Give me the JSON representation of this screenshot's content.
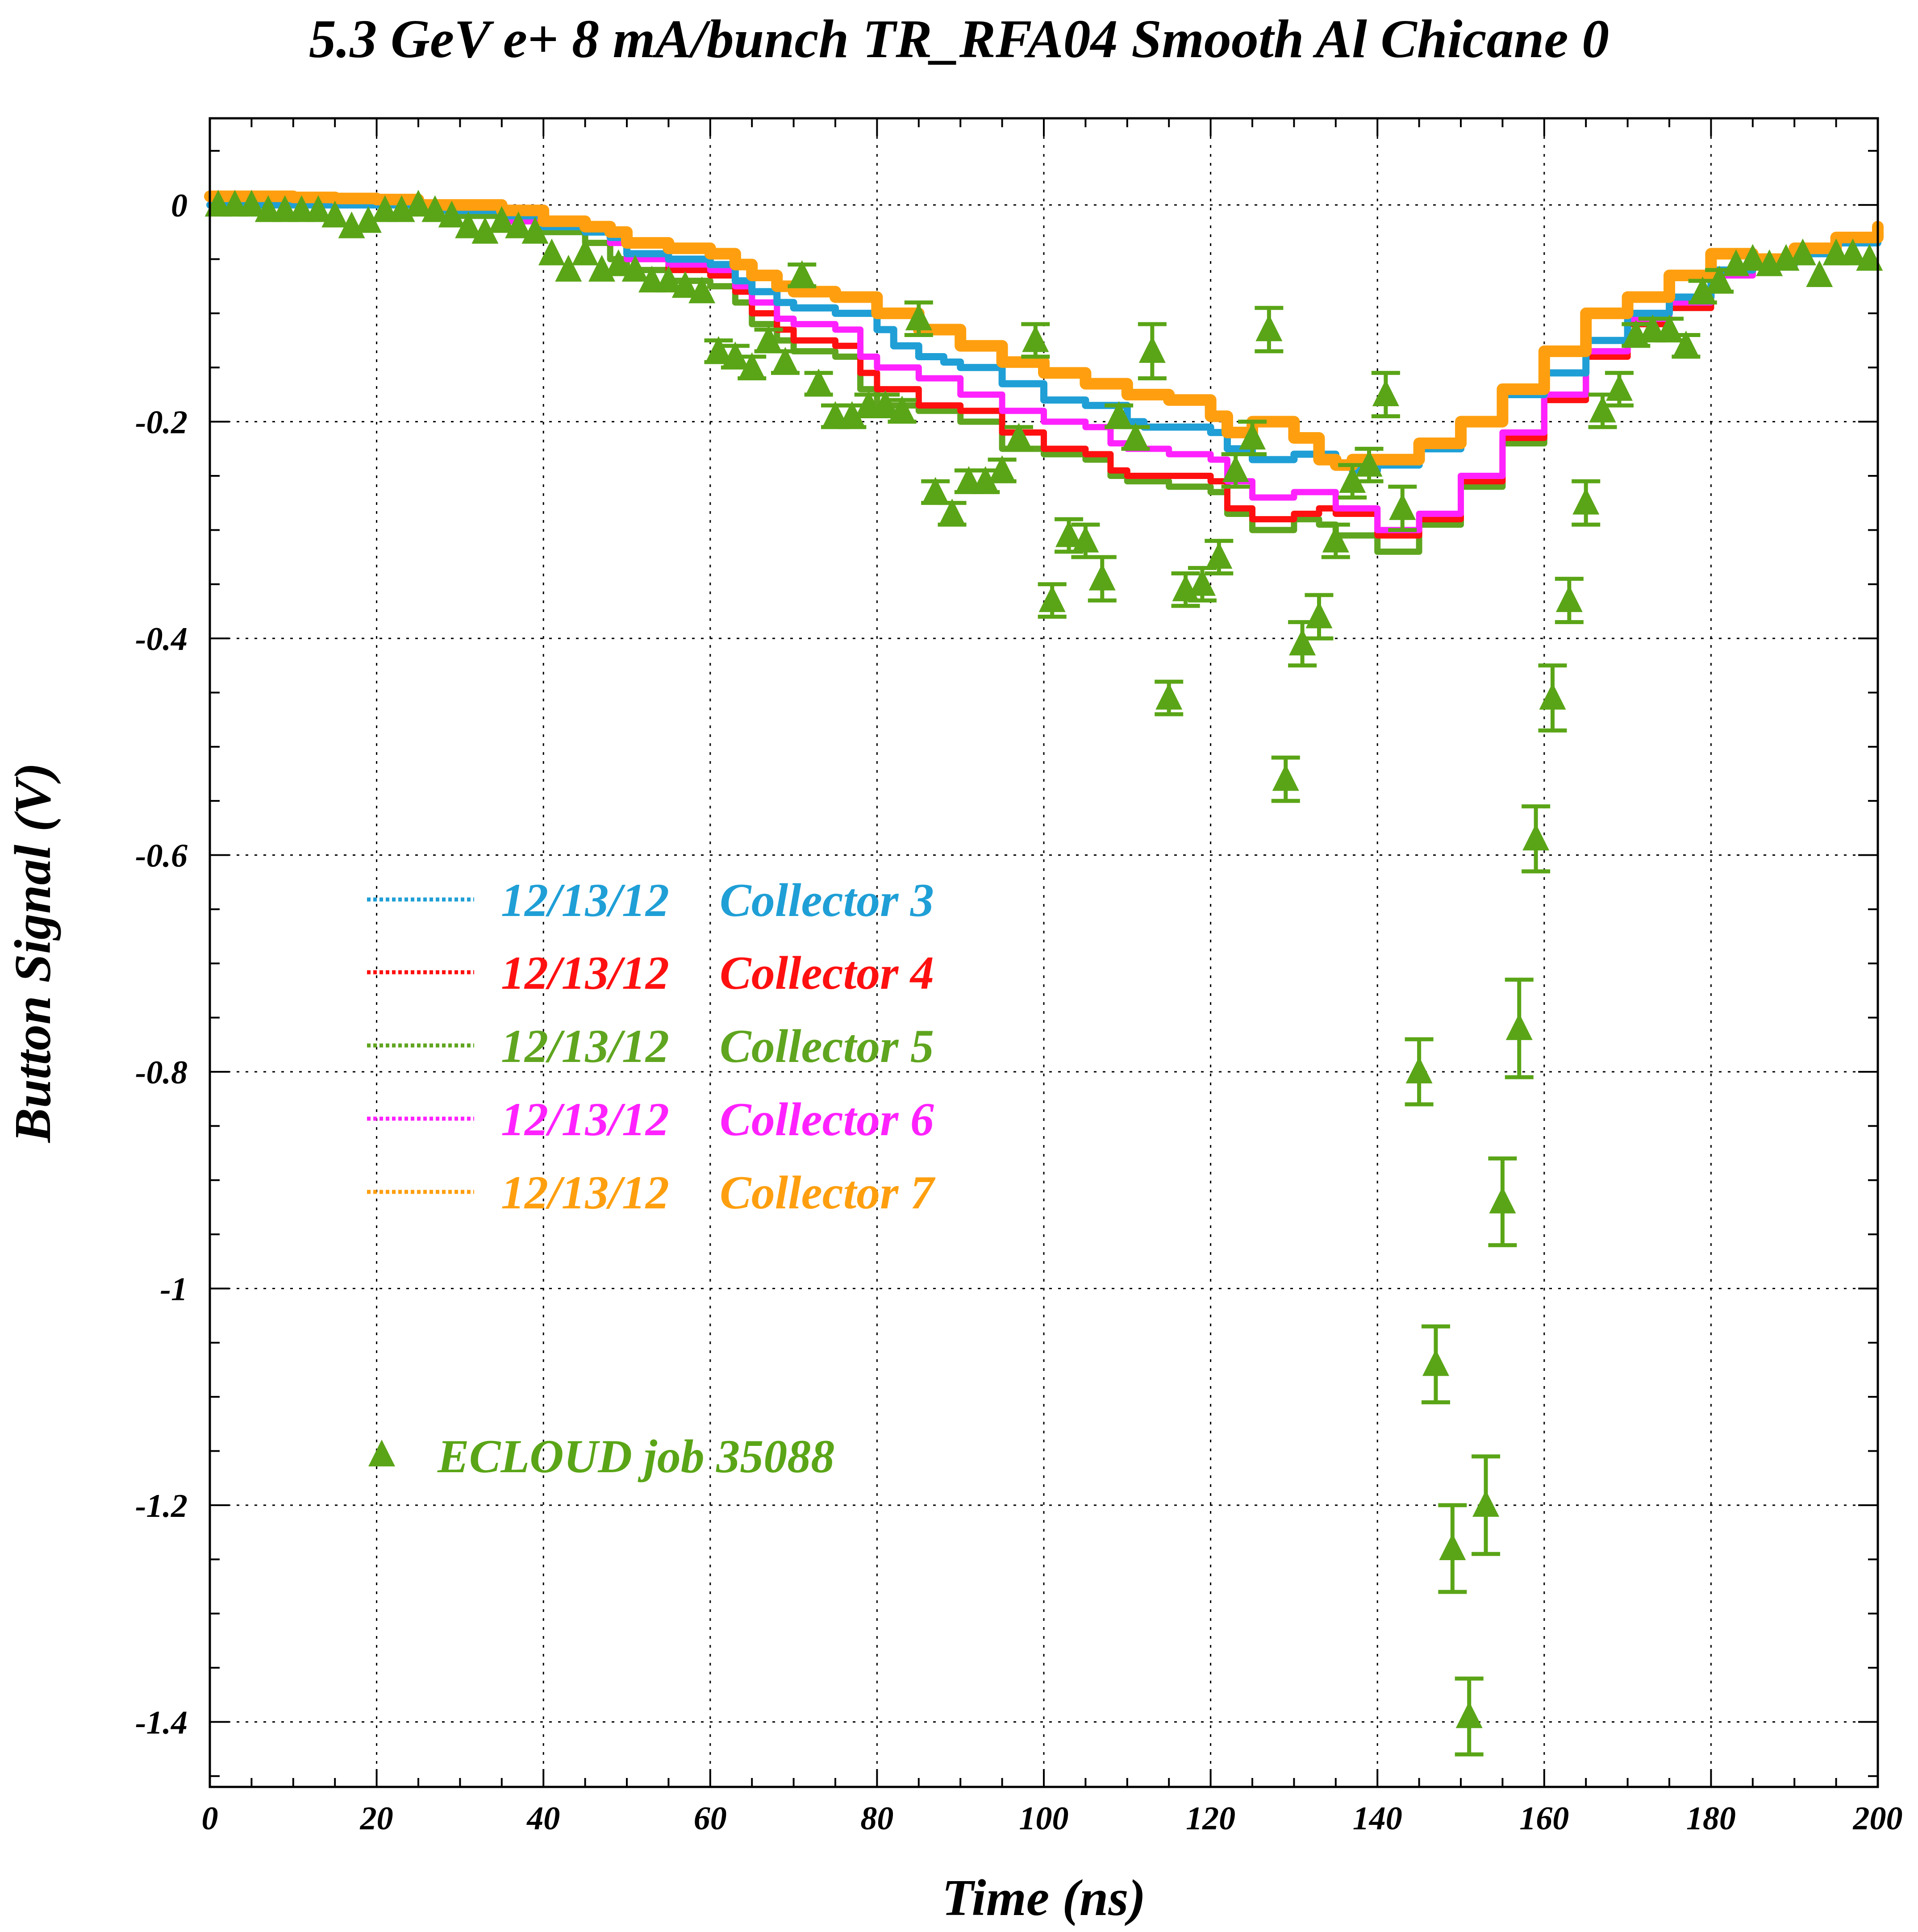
{
  "chart_data": {
    "type": "line",
    "title": "5.3 GeV e+ 8 mA/bunch  TR_RFA04 Smooth Al Chicane 0",
    "xlabel": "Time (ns)",
    "ylabel": "Button Signal (V)",
    "xlim": [
      0,
      200
    ],
    "ylim": [
      -1.46,
      0.08
    ],
    "xticks": [
      0,
      20,
      40,
      60,
      80,
      100,
      120,
      140,
      160,
      180,
      200
    ],
    "yticks": [
      0,
      -0.2,
      -0.4,
      -0.6,
      -0.8,
      -1,
      -1.2,
      -1.4
    ],
    "xtick_labels": [
      "0",
      "20",
      "40",
      "60",
      "80",
      "100",
      "120",
      "140",
      "160",
      "180",
      "200"
    ],
    "ytick_labels": [
      "0",
      "-0.2",
      "-0.4",
      "-0.6",
      "-0.8",
      "-1",
      "-1.2",
      "-1.4"
    ],
    "grid": true,
    "legend_position": "left",
    "series": [
      {
        "name": "Collector 3",
        "legend_date": "12/13/12",
        "color": "#1f9fd6",
        "x": [
          0,
          5,
          10,
          15,
          20,
          25,
          30,
          35,
          40,
          45,
          48,
          50,
          55,
          60,
          63,
          65,
          68,
          70,
          75,
          77,
          80,
          82,
          85,
          88,
          90,
          95,
          100,
          105,
          110,
          112,
          115,
          120,
          122,
          125,
          130,
          135,
          137,
          140,
          145,
          150,
          155,
          160,
          165,
          170,
          175,
          180,
          185,
          190,
          195,
          200
        ],
        "y": [
          0.0,
          0.0,
          0.0,
          0.0,
          0.0,
          -0.005,
          -0.005,
          -0.01,
          -0.02,
          -0.025,
          -0.03,
          -0.045,
          -0.05,
          -0.055,
          -0.07,
          -0.08,
          -0.09,
          -0.095,
          -0.1,
          -0.1,
          -0.115,
          -0.13,
          -0.14,
          -0.145,
          -0.15,
          -0.165,
          -0.18,
          -0.185,
          -0.2,
          -0.205,
          -0.205,
          -0.21,
          -0.225,
          -0.235,
          -0.23,
          -0.24,
          -0.245,
          -0.24,
          -0.225,
          -0.2,
          -0.175,
          -0.155,
          -0.125,
          -0.1,
          -0.085,
          -0.06,
          -0.055,
          -0.045,
          -0.035,
          -0.02
        ]
      },
      {
        "name": "Collector 4",
        "legend_date": "12/13/12",
        "color": "#ff1010",
        "x": [
          0,
          5,
          10,
          15,
          20,
          25,
          30,
          35,
          40,
          45,
          48,
          50,
          55,
          60,
          63,
          65,
          68,
          70,
          75,
          78,
          80,
          85,
          90,
          95,
          100,
          105,
          108,
          110,
          115,
          120,
          122,
          125,
          130,
          133,
          135,
          140,
          145,
          150,
          155,
          160,
          165,
          170,
          175,
          180,
          185,
          190,
          195,
          200
        ],
        "y": [
          0.005,
          0.005,
          0.005,
          0.0,
          0.0,
          -0.005,
          -0.005,
          -0.015,
          -0.02,
          -0.025,
          -0.035,
          -0.05,
          -0.06,
          -0.065,
          -0.08,
          -0.1,
          -0.115,
          -0.125,
          -0.13,
          -0.155,
          -0.17,
          -0.185,
          -0.19,
          -0.21,
          -0.225,
          -0.23,
          -0.245,
          -0.25,
          -0.25,
          -0.255,
          -0.28,
          -0.29,
          -0.285,
          -0.28,
          -0.285,
          -0.305,
          -0.29,
          -0.255,
          -0.215,
          -0.18,
          -0.14,
          -0.11,
          -0.095,
          -0.065,
          -0.05,
          -0.045,
          -0.035,
          -0.02
        ]
      },
      {
        "name": "Collector 5",
        "legend_date": "12/13/12",
        "color": "#5fa51f",
        "x": [
          0,
          5,
          10,
          15,
          20,
          25,
          30,
          35,
          40,
          45,
          48,
          50,
          55,
          60,
          63,
          65,
          68,
          70,
          75,
          78,
          80,
          85,
          90,
          95,
          100,
          105,
          108,
          110,
          115,
          120,
          122,
          125,
          130,
          133,
          135,
          140,
          145,
          150,
          155,
          160,
          165,
          170,
          175,
          180,
          185,
          190,
          195,
          200
        ],
        "y": [
          0.005,
          0.005,
          0.005,
          0.0,
          0.0,
          -0.005,
          -0.01,
          -0.015,
          -0.025,
          -0.035,
          -0.05,
          -0.06,
          -0.07,
          -0.075,
          -0.09,
          -0.11,
          -0.125,
          -0.135,
          -0.14,
          -0.17,
          -0.185,
          -0.19,
          -0.2,
          -0.225,
          -0.23,
          -0.235,
          -0.25,
          -0.255,
          -0.26,
          -0.265,
          -0.285,
          -0.3,
          -0.29,
          -0.295,
          -0.305,
          -0.32,
          -0.295,
          -0.26,
          -0.22,
          -0.175,
          -0.135,
          -0.11,
          -0.095,
          -0.065,
          -0.05,
          -0.045,
          -0.035,
          -0.02
        ]
      },
      {
        "name": "Collector 6",
        "legend_date": "12/13/12",
        "color": "#ff22ff",
        "x": [
          0,
          5,
          10,
          15,
          20,
          25,
          30,
          35,
          40,
          45,
          48,
          50,
          55,
          60,
          63,
          65,
          68,
          70,
          75,
          78,
          80,
          85,
          90,
          95,
          100,
          105,
          108,
          110,
          115,
          120,
          122,
          125,
          130,
          133,
          135,
          140,
          145,
          150,
          155,
          160,
          165,
          170,
          175,
          180,
          185,
          190,
          195,
          200
        ],
        "y": [
          0.005,
          0.005,
          0.005,
          0.0,
          0.0,
          -0.005,
          -0.005,
          -0.015,
          -0.02,
          -0.025,
          -0.035,
          -0.05,
          -0.055,
          -0.06,
          -0.075,
          -0.09,
          -0.105,
          -0.11,
          -0.115,
          -0.14,
          -0.15,
          -0.16,
          -0.175,
          -0.19,
          -0.2,
          -0.205,
          -0.22,
          -0.225,
          -0.23,
          -0.235,
          -0.255,
          -0.27,
          -0.265,
          -0.265,
          -0.28,
          -0.3,
          -0.285,
          -0.25,
          -0.21,
          -0.175,
          -0.135,
          -0.105,
          -0.09,
          -0.065,
          -0.05,
          -0.045,
          -0.035,
          -0.02
        ]
      },
      {
        "name": "Collector 7",
        "legend_date": "12/13/12",
        "color": "#ff9f0f",
        "x": [
          0,
          5,
          10,
          15,
          20,
          25,
          30,
          35,
          40,
          45,
          48,
          50,
          55,
          60,
          63,
          65,
          68,
          70,
          75,
          80,
          85,
          90,
          95,
          100,
          105,
          110,
          115,
          120,
          122,
          125,
          130,
          133,
          135,
          137,
          140,
          145,
          150,
          155,
          160,
          165,
          170,
          175,
          180,
          185,
          190,
          195,
          200
        ],
        "y": [
          0.008,
          0.008,
          0.007,
          0.006,
          0.005,
          0.0,
          0.0,
          -0.005,
          -0.015,
          -0.02,
          -0.025,
          -0.035,
          -0.04,
          -0.045,
          -0.055,
          -0.065,
          -0.075,
          -0.08,
          -0.085,
          -0.1,
          -0.115,
          -0.13,
          -0.145,
          -0.155,
          -0.165,
          -0.175,
          -0.18,
          -0.195,
          -0.21,
          -0.2,
          -0.215,
          -0.235,
          -0.24,
          -0.235,
          -0.235,
          -0.22,
          -0.2,
          -0.17,
          -0.135,
          -0.1,
          -0.085,
          -0.065,
          -0.045,
          -0.05,
          -0.04,
          -0.03,
          -0.02
        ]
      },
      {
        "name": "ECLOUD job 35088",
        "color": "#5aa517",
        "marker": "triangle",
        "x": [
          1,
          3,
          5,
          7,
          9,
          11,
          13,
          15,
          17,
          19,
          21,
          23,
          25,
          27,
          29,
          31,
          33,
          35,
          37,
          39,
          41,
          43,
          45,
          47,
          49,
          51,
          53,
          55,
          57,
          59,
          61,
          63,
          65,
          67,
          69,
          71,
          73,
          75,
          77,
          79,
          81,
          83,
          85,
          87,
          89,
          91,
          93,
          95,
          97,
          99,
          101,
          103,
          105,
          107,
          109,
          111,
          113,
          115,
          117,
          119,
          121,
          123,
          125,
          127,
          129,
          131,
          133,
          135,
          137,
          139,
          141,
          143,
          145,
          147,
          149,
          151,
          153,
          155,
          157,
          159,
          161,
          163,
          165,
          167,
          169,
          171,
          173,
          175,
          177,
          179,
          181,
          183,
          185,
          187,
          189,
          191,
          193,
          195,
          197,
          199
        ],
        "y": [
          0.0,
          0.0,
          0.0,
          -0.005,
          -0.005,
          -0.005,
          -0.005,
          -0.01,
          -0.02,
          -0.015,
          -0.005,
          -0.005,
          0.0,
          -0.005,
          -0.01,
          -0.02,
          -0.025,
          -0.015,
          -0.02,
          -0.025,
          -0.045,
          -0.06,
          -0.045,
          -0.06,
          -0.055,
          -0.06,
          -0.07,
          -0.07,
          -0.075,
          -0.08,
          -0.135,
          -0.14,
          -0.15,
          -0.125,
          -0.145,
          -0.065,
          -0.165,
          -0.195,
          -0.195,
          -0.185,
          -0.185,
          -0.19,
          -0.105,
          -0.265,
          -0.285,
          -0.255,
          -0.255,
          -0.245,
          -0.215,
          -0.125,
          -0.365,
          -0.305,
          -0.31,
          -0.345,
          -0.195,
          -0.215,
          -0.135,
          -0.455,
          -0.355,
          -0.35,
          -0.325,
          -0.245,
          -0.215,
          -0.115,
          -0.53,
          -0.405,
          -0.38,
          -0.31,
          -0.255,
          -0.24,
          -0.175,
          -0.28,
          -0.8,
          -1.07,
          -1.24,
          -1.395,
          -1.2,
          -0.92,
          -0.76,
          -0.585,
          -0.455,
          -0.365,
          -0.275,
          -0.19,
          -0.17,
          -0.12,
          -0.115,
          -0.115,
          -0.13,
          -0.08,
          -0.07,
          -0.055,
          -0.05,
          -0.055,
          -0.05,
          -0.045,
          -0.065,
          -0.045,
          -0.045,
          -0.05
        ],
        "yerr": [
          0.005,
          0.005,
          0.005,
          0.005,
          0.005,
          0.005,
          0.005,
          0.005,
          0.005,
          0.005,
          0.005,
          0.005,
          0.005,
          0.005,
          0.005,
          0.005,
          0.005,
          0.005,
          0.005,
          0.005,
          0.008,
          0.008,
          0.008,
          0.008,
          0.008,
          0.008,
          0.008,
          0.008,
          0.008,
          0.008,
          0.01,
          0.01,
          0.01,
          0.01,
          0.01,
          0.01,
          0.01,
          0.01,
          0.01,
          0.01,
          0.01,
          0.01,
          0.015,
          0.01,
          0.01,
          0.01,
          0.01,
          0.01,
          0.01,
          0.015,
          0.015,
          0.015,
          0.015,
          0.02,
          0.01,
          0.01,
          0.025,
          0.015,
          0.015,
          0.015,
          0.015,
          0.015,
          0.015,
          0.02,
          0.02,
          0.02,
          0.02,
          0.015,
          0.015,
          0.015,
          0.02,
          0.02,
          0.03,
          0.035,
          0.04,
          0.035,
          0.045,
          0.04,
          0.045,
          0.03,
          0.03,
          0.02,
          0.02,
          0.015,
          0.015,
          0.01,
          0.01,
          0.01,
          0.01,
          0.01,
          0.01,
          0.005,
          0.005,
          0.005,
          0.005,
          0.005,
          0.005,
          0.005,
          0.005,
          0.005
        ]
      }
    ]
  },
  "legend": {
    "items": [
      {
        "date": "12/13/12",
        "label": "Collector 3",
        "color": "#1f9fd6"
      },
      {
        "date": "12/13/12",
        "label": "Collector 4",
        "color": "#ff1010"
      },
      {
        "date": "12/13/12",
        "label": "Collector 5",
        "color": "#5fa51f"
      },
      {
        "date": "12/13/12",
        "label": "Collector 6",
        "color": "#ff22ff"
      },
      {
        "date": "12/13/12",
        "label": "Collector 7",
        "color": "#ff9f0f"
      }
    ],
    "marker_item": {
      "label": "ECLOUD job 35088",
      "color": "#5aa517",
      "icon": "triangle-marker-icon"
    }
  }
}
